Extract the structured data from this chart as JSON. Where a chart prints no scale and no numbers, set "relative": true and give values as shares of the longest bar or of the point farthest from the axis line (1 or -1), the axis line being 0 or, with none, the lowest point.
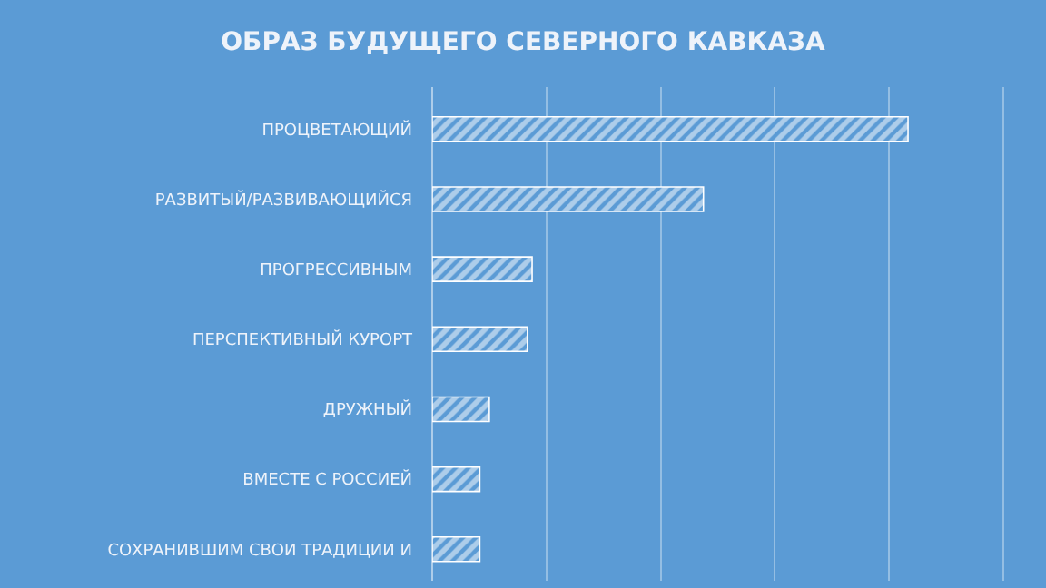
{
  "chart_data": {
    "type": "bar",
    "orientation": "horizontal",
    "relative": true,
    "title": "ОБРАЗ БУДУЩЕГО СЕВЕРНОГО КАВКАЗА",
    "categories": [
      "ПРОЦВЕТАЮЩИЙ",
      "РАЗВИТЫЙ/РАЗВИВАЮЩИЙСЯ",
      "ПРОГРЕССИВНЫМ",
      "ПЕРСПЕКТИВНЫЙ КУРОРТ",
      "ДРУЖНЫЙ",
      "ВМЕСТЕ С РОССИЕЙ",
      "СОХРАНИВШИМ СВОИ ТРАДИЦИИ И"
    ],
    "values": [
      1,
      0.57,
      0.21,
      0.2,
      0.12,
      0.1,
      0.1
    ],
    "color": "#ffffff",
    "grid": "x",
    "legend": false
  }
}
